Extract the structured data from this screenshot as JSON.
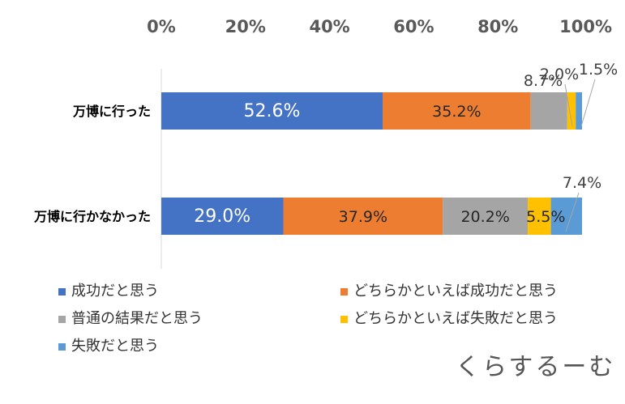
{
  "chart_data": {
    "type": "bar",
    "orientation": "horizontal",
    "stacked": true,
    "percent": true,
    "xlim": [
      0,
      100
    ],
    "x_ticks": [
      "0%",
      "20%",
      "40%",
      "60%",
      "80%",
      "100%"
    ],
    "x_axis_position": "top",
    "categories": [
      "万博に行った",
      "万博に行かなかった"
    ],
    "series": [
      {
        "name": "成功だと思う",
        "color": "#4472C4",
        "values": [
          52.6,
          29.0
        ],
        "labels": [
          "52.6%",
          "29.0%"
        ]
      },
      {
        "name": "どちらかといえば成功だと思う",
        "color": "#ED7D31",
        "values": [
          35.2,
          37.9
        ],
        "labels": [
          "35.2%",
          "37.9%"
        ]
      },
      {
        "name": "普通の結果だと思う",
        "color": "#A5A5A5",
        "values": [
          8.7,
          20.2
        ],
        "labels": [
          "8.7%",
          "20.2%"
        ]
      },
      {
        "name": "どちらかといえば失敗だと思う",
        "color": "#FFC000",
        "values": [
          2.0,
          5.5
        ],
        "labels": [
          "2.0%",
          "5.5%"
        ]
      },
      {
        "name": "失敗だと思う",
        "color": "#5B9BD5",
        "values": [
          1.5,
          7.4
        ],
        "labels": [
          "1.5%",
          "7.4%"
        ]
      }
    ],
    "legend_placement": "bottom",
    "grid": false
  },
  "brand": "くらするーむ"
}
